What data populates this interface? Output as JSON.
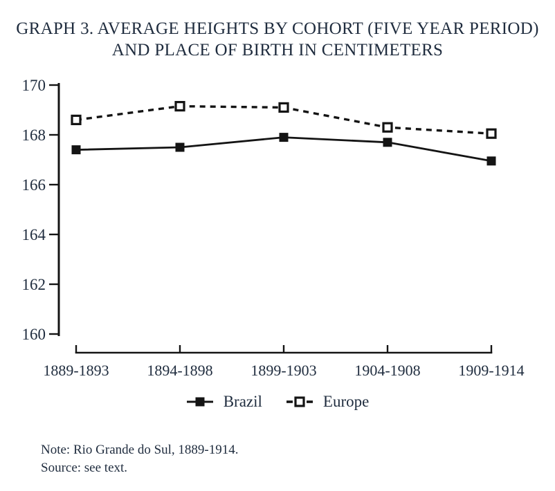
{
  "page": {
    "title_line1": "GRAPH 3. AVERAGE HEIGHTS BY COHORT (FIVE YEAR PERIOD)",
    "title_line2": "AND PLACE OF BIRTH IN CENTIMETERS",
    "note": "Note: Rio Grande do Sul, 1889-1914.",
    "source": "Source: see text."
  },
  "colors": {
    "text": "#1f2c3e",
    "line": "#141414",
    "background": "#ffffff"
  },
  "chart_data": {
    "type": "line",
    "title": "GRAPH 3. AVERAGE HEIGHTS BY COHORT (FIVE YEAR PERIOD) AND PLACE OF BIRTH IN CENTIMETERS",
    "categories": [
      "1889-1893",
      "1894-1898",
      "1899-1903",
      "1904-1908",
      "1909-1914"
    ],
    "series": [
      {
        "name": "Brazil",
        "values": [
          167.4,
          167.5,
          167.9,
          167.7,
          166.95
        ],
        "line_style": "solid",
        "marker": "filled-square"
      },
      {
        "name": "Europe",
        "values": [
          168.6,
          169.15,
          169.1,
          168.3,
          168.05
        ],
        "line_style": "dashed",
        "marker": "open-square"
      }
    ],
    "xlabel": "",
    "ylabel": "",
    "ylim": [
      160,
      170
    ],
    "yticks": [
      160,
      162,
      164,
      166,
      168,
      170
    ],
    "grid": false,
    "legend_position": "bottom"
  }
}
